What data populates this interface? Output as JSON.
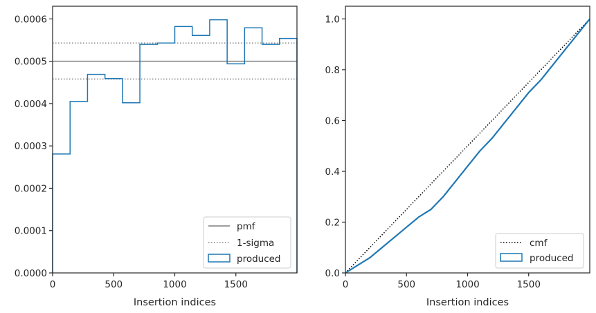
{
  "chart_data": [
    {
      "type": "step-histogram",
      "xlabel": "Insertion indices",
      "ylabel": "",
      "xlim": [
        0,
        2000
      ],
      "ylim": [
        0,
        0.00063
      ],
      "xticks": [
        "0",
        "500",
        "1000",
        "1500"
      ],
      "xtick_values": [
        0,
        500,
        1000,
        1500
      ],
      "yticks": [
        "0.0000",
        "0.0001",
        "0.0002",
        "0.0003",
        "0.0004",
        "0.0005",
        "0.0006"
      ],
      "ytick_values": [
        0,
        0.0001,
        0.0002,
        0.0003,
        0.0004,
        0.0005,
        0.0006
      ],
      "legend_position": "bottom-right",
      "pmf": {
        "name": "pmf",
        "value": 0.0005,
        "color": "#7f7f7f"
      },
      "sigma": {
        "name": "1-sigma",
        "values": [
          0.000458,
          0.000543
        ],
        "color": "#7f7f7f"
      },
      "produced": {
        "name": "produced",
        "color": "#1f77b4",
        "bin_edges": [
          0,
          142.9,
          285.7,
          428.6,
          571.4,
          714.3,
          857.1,
          1000,
          1142.9,
          1285.7,
          1428.6,
          1571.4,
          1714.3,
          1857.1,
          2000
        ],
        "values": [
          0.000281,
          0.000405,
          0.000469,
          0.000459,
          0.000402,
          0.00054,
          0.000543,
          0.000582,
          0.000561,
          0.000598,
          0.000494,
          0.000579,
          0.00054,
          0.000554
        ]
      }
    },
    {
      "type": "line",
      "xlabel": "Insertion indices",
      "ylabel": "",
      "xlim": [
        0,
        2000
      ],
      "ylim": [
        0,
        1.05
      ],
      "xticks": [
        "0",
        "500",
        "1000",
        "1500"
      ],
      "xtick_values": [
        0,
        500,
        1000,
        1500
      ],
      "yticks": [
        "0.0",
        "0.2",
        "0.4",
        "0.6",
        "0.8",
        "1.0"
      ],
      "ytick_values": [
        0,
        0.2,
        0.4,
        0.6,
        0.8,
        1.0
      ],
      "legend_position": "bottom-right",
      "series": [
        {
          "name": "cmf",
          "color": "#000000",
          "style": "dotted",
          "x": [
            0,
            2000
          ],
          "y": [
            0,
            1.0
          ]
        },
        {
          "name": "produced",
          "color": "#1f77b4",
          "style": "solid",
          "x": [
            0,
            100,
            200,
            300,
            400,
            500,
            600,
            700,
            800,
            900,
            1000,
            1100,
            1200,
            1300,
            1400,
            1500,
            1600,
            1700,
            1800,
            1900,
            2000
          ],
          "y": [
            0,
            0.03,
            0.06,
            0.1,
            0.14,
            0.18,
            0.22,
            0.25,
            0.3,
            0.36,
            0.42,
            0.48,
            0.53,
            0.59,
            0.65,
            0.71,
            0.76,
            0.82,
            0.88,
            0.94,
            1.0
          ]
        }
      ]
    }
  ]
}
